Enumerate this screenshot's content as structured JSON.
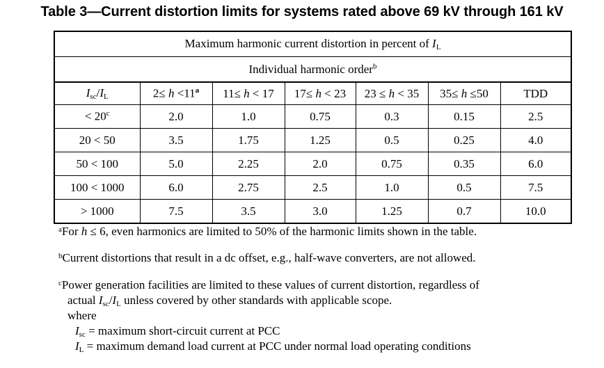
{
  "caption": "Table 3—Current distortion limits for systems rated above 69 kV through 161 kV",
  "table": {
    "title_row": "Maximum harmonic current distortion in percent of IL",
    "subtitle_row": "Individual harmonic orderb",
    "columns": [
      "Isc/IL",
      "2≤ h <11a",
      "11≤ h < 17",
      "17≤ h < 23",
      "23 ≤ h < 35",
      "35≤ h ≤50",
      "TDD"
    ],
    "rows": [
      [
        "< 20c",
        "2.0",
        "1.0",
        "0.75",
        "0.3",
        "0.15",
        "2.5"
      ],
      [
        "20 < 50",
        "3.5",
        "1.75",
        "1.25",
        "0.5",
        "0.25",
        "4.0"
      ],
      [
        "50 < 100",
        "5.0",
        "2.25",
        "2.0",
        "0.75",
        "0.35",
        "6.0"
      ],
      [
        "100 < 1000",
        "6.0",
        "2.75",
        "2.5",
        "1.0",
        "0.5",
        "7.5"
      ],
      [
        "> 1000",
        "7.5",
        "3.5",
        "3.0",
        "1.25",
        "0.7",
        "10.0"
      ]
    ]
  },
  "notes": {
    "a": "a For h ≤ 6, even harmonics are limited to 50% of the harmonic limits shown in the table.",
    "b": "b Current distortions that result in a dc offset, e.g., half-wave converters, are not allowed.",
    "c_line1": "c Power generation facilities are limited to these values of current distortion, regardless of",
    "c_line2": "actual Isc/IL unless covered by other standards with applicable scope.",
    "where": "where",
    "def_isc": "Isc = maximum short-circuit current at PCC",
    "def_il": "IL = maximum demand load current at PCC under normal load operating conditions"
  }
}
